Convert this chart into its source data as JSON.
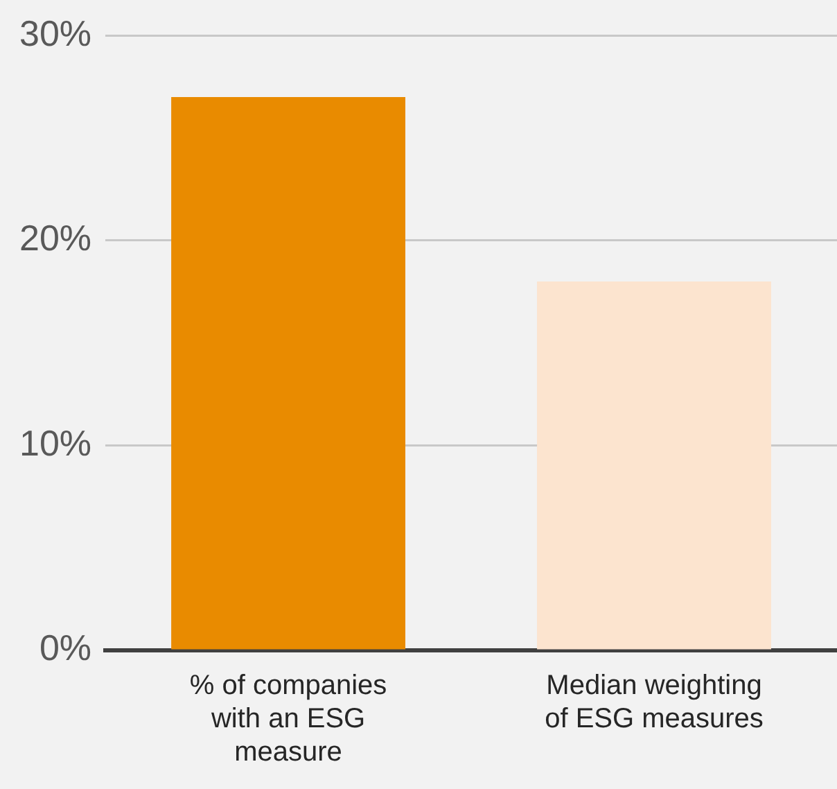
{
  "chart_data": {
    "type": "bar",
    "categories": [
      "% of companies with an ESG measure",
      "Median weighting of ESG measures"
    ],
    "values": [
      27,
      18
    ],
    "colors": [
      "#e98b00",
      "#fce4cf"
    ],
    "ylim": [
      0,
      30
    ],
    "yticks": [
      {
        "value": 0,
        "label": "0%"
      },
      {
        "value": 10,
        "label": "10%"
      },
      {
        "value": 20,
        "label": "20%"
      },
      {
        "value": 30,
        "label": "30%"
      }
    ],
    "grid": "y",
    "legend": false
  }
}
